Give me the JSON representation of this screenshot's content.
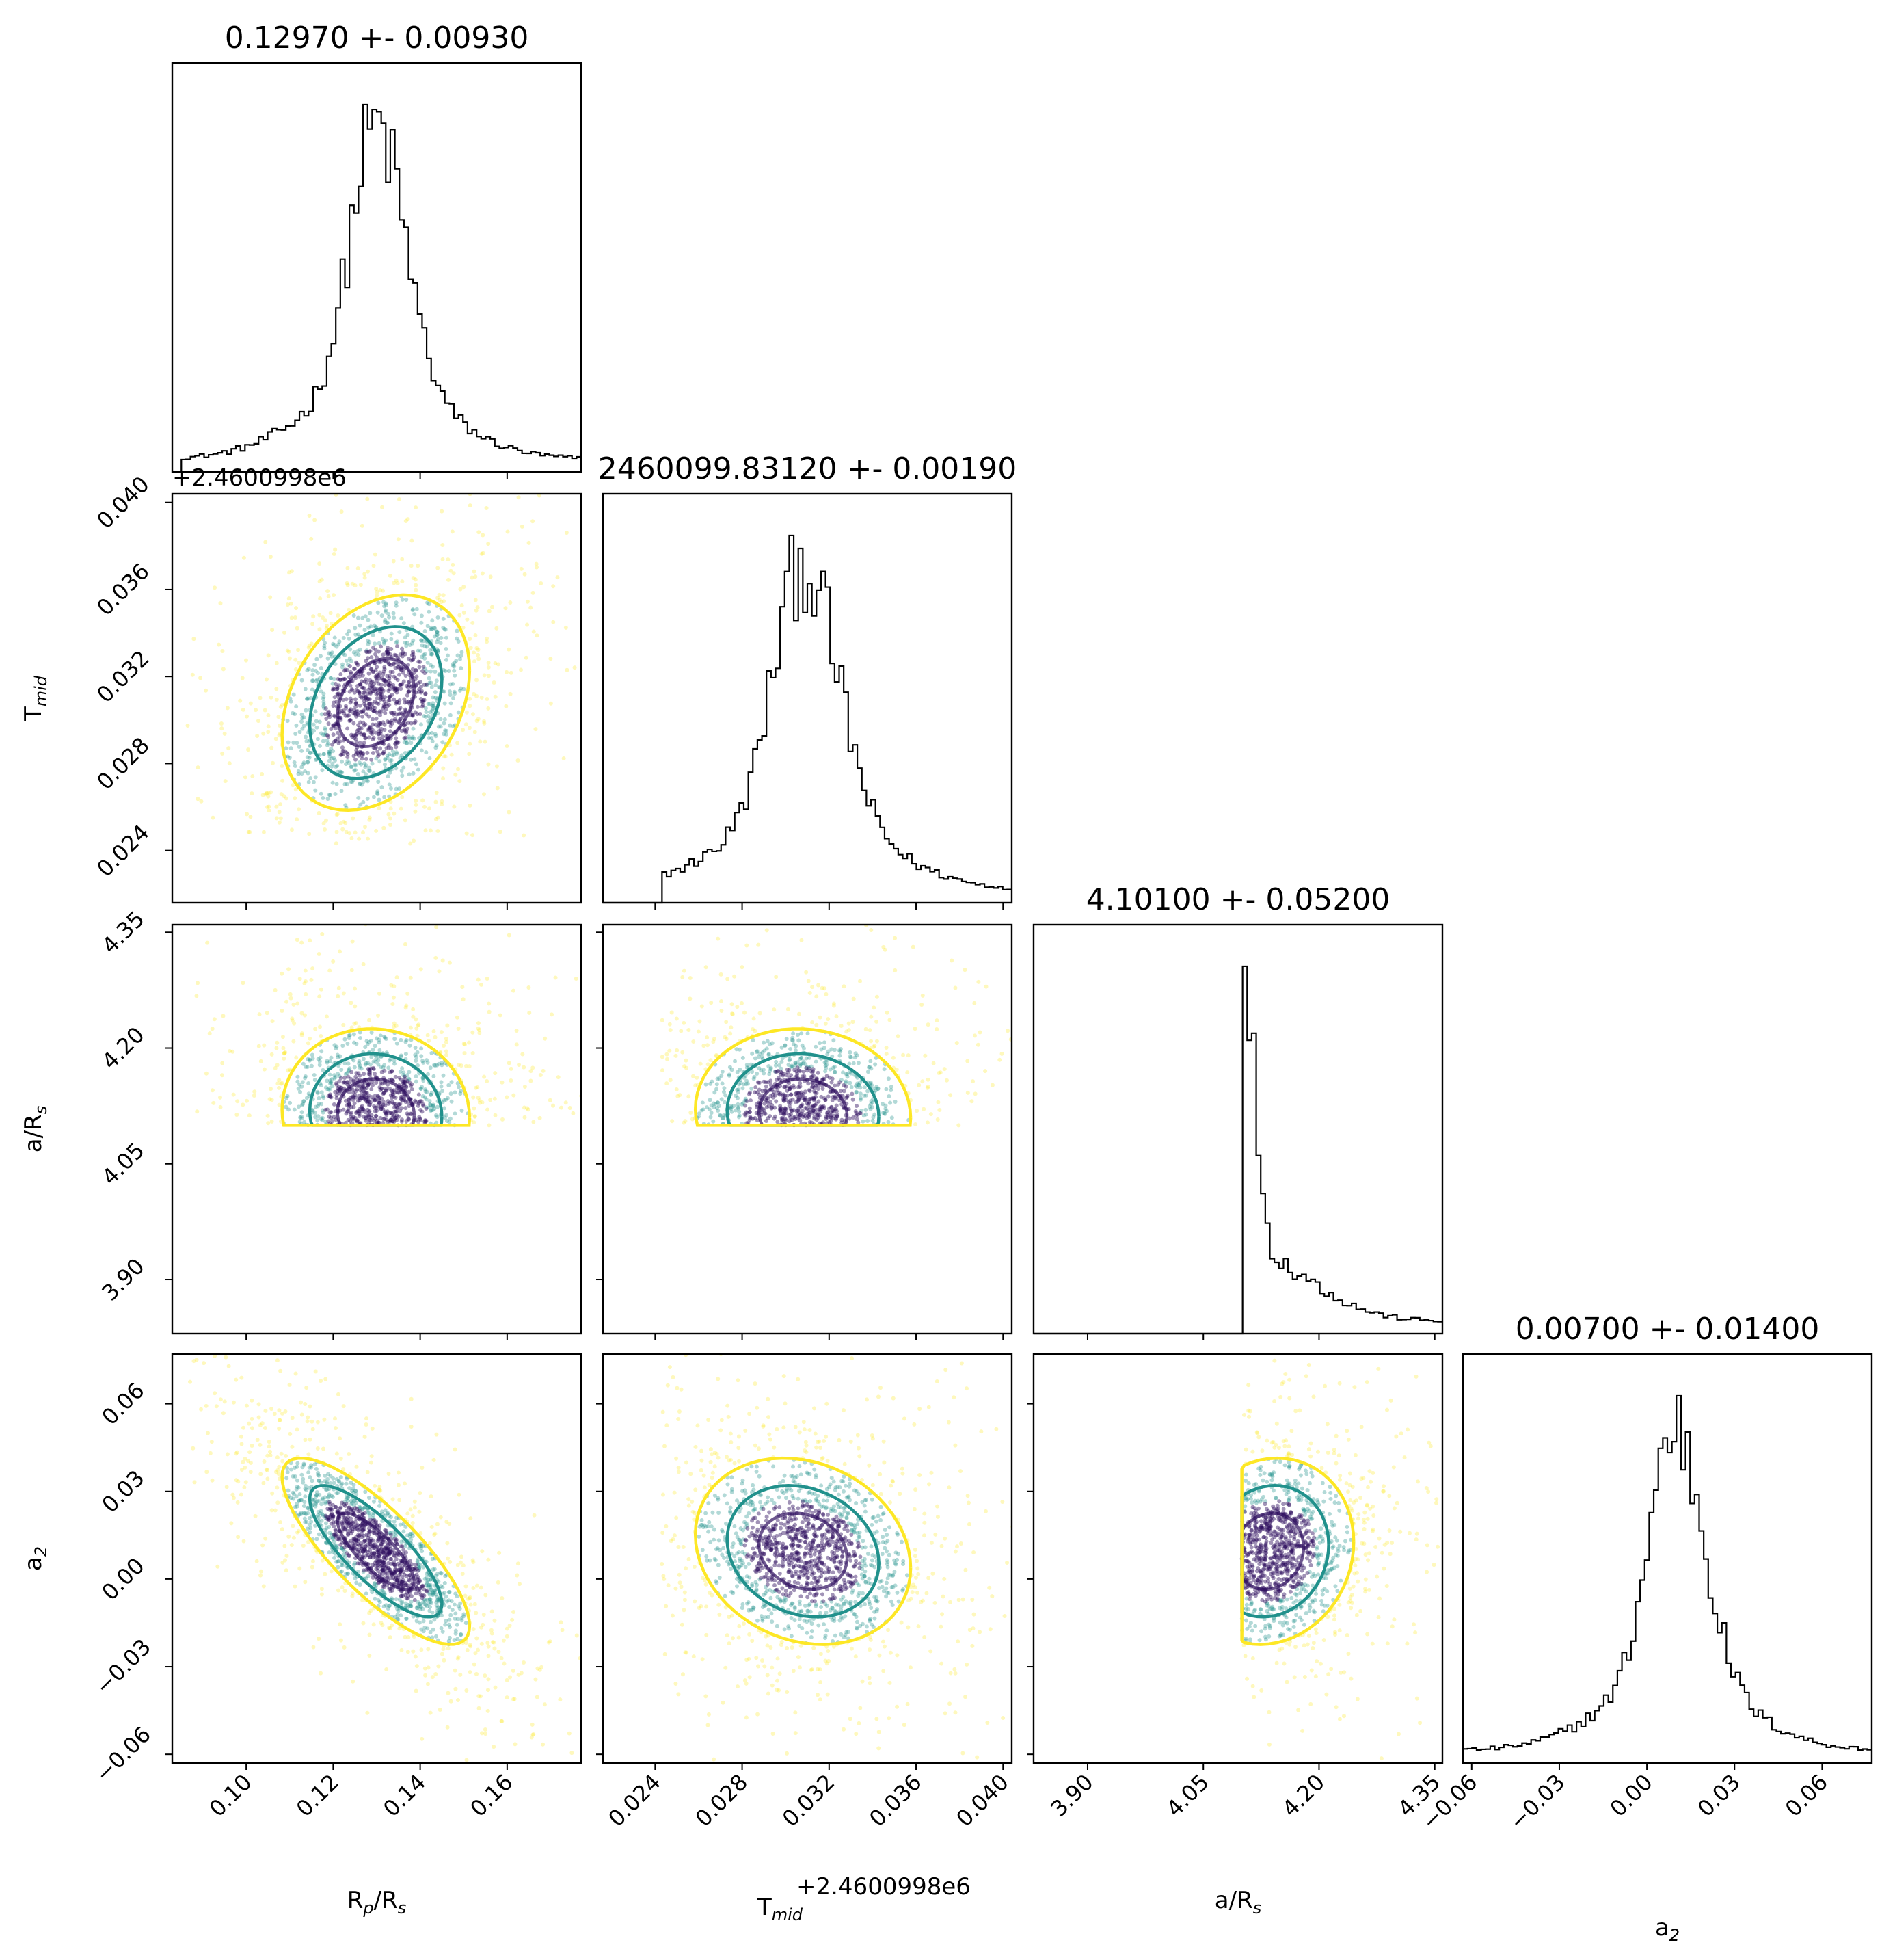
{
  "chart_data": {
    "type": "corner",
    "parameters": [
      {
        "key": "rp",
        "label_main": "R",
        "label_sub1": "p",
        "label_mid": "/R",
        "label_sub2": "s",
        "title": "0.12970 +- 0.00930",
        "range": [
          0.083,
          0.177
        ],
        "ticks": [
          0.1,
          0.12,
          0.14,
          0.16
        ],
        "tick_labels": [
          "0.10",
          "0.12",
          "0.14",
          "0.16"
        ],
        "lo": 0.085,
        "peak": 0.1298
      },
      {
        "key": "tmid",
        "label_main": "T",
        "label_sub1": "mid",
        "label_mid": "",
        "label_sub2": "",
        "title": "2460099.83120 +- 0.00190",
        "offset_label": "+2.4600998e6",
        "range": [
          0.0216,
          0.0404
        ],
        "ticks": [
          0.024,
          0.028,
          0.032,
          0.036,
          0.04
        ],
        "tick_labels": [
          "0.024",
          "0.028",
          "0.032",
          "0.036",
          "0.040"
        ],
        "lo": 0.0243,
        "peak": 0.0308
      },
      {
        "key": "ars",
        "label_main": "a/R",
        "label_sub1": "",
        "label_mid": "",
        "label_sub2": "s",
        "title": "4.10100 +- 0.05200",
        "range": [
          3.83,
          4.36
        ],
        "ticks": [
          3.9,
          4.05,
          4.2,
          4.35
        ],
        "tick_labels": [
          "3.90",
          "4.05",
          "4.20",
          "4.35"
        ],
        "lo": 4.1,
        "peak": 4.105
      },
      {
        "key": "a2",
        "label_main": "a",
        "label_sub1": "",
        "label_mid": "",
        "label_sub2": "2",
        "title": "0.00700 +- 0.01400",
        "range": [
          -0.063,
          0.077
        ],
        "ticks": [
          -0.06,
          -0.03,
          0.0,
          0.03,
          0.06
        ],
        "tick_labels": [
          "−0.06",
          "−0.03",
          "0.00",
          "0.03",
          "0.06"
        ],
        "lo": -0.063,
        "peak": 0.0095
      }
    ],
    "colors": {
      "sigma1": "#2f0f5f",
      "sigma2": "#21918c",
      "sigma3": "#fde725",
      "hist": "#000000"
    }
  }
}
